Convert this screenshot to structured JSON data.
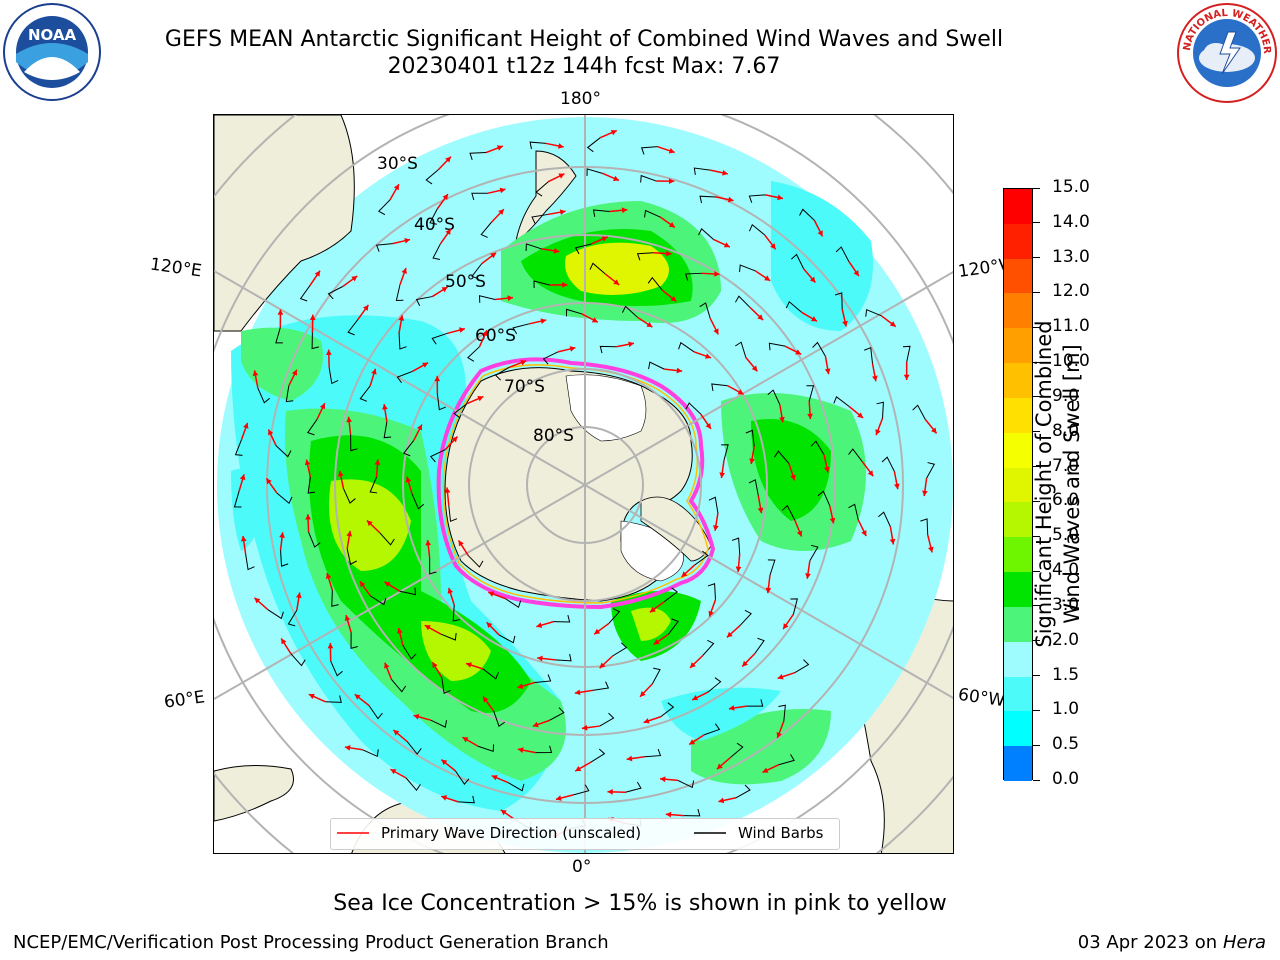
{
  "title": {
    "line1": "GEFS MEAN Antarctic Significant Height of Combined Wind Waves and Swell",
    "line2": "20230401 t12z 144h fcst   Max: 7.67"
  },
  "map": {
    "projection": "south-polar-stereographic",
    "lon_labels": {
      "top": "180°",
      "bottom": "0°",
      "upper_left": "120°E",
      "upper_right": "120°W",
      "lower_left": "60°E",
      "lower_right": "60°W"
    },
    "lat_labels": [
      "30°S",
      "40°S",
      "50°S",
      "60°S",
      "70°S",
      "80°S"
    ],
    "colors": {
      "land": "#eeeeda",
      "ice": "#ffffff",
      "wave_low": "#9efcff",
      "wave_mid": "#4dfafa",
      "wave_3_4": "#4cf57a",
      "wave_4_5": "#00e400",
      "wave_5_6": "#6ef500",
      "wave_6_7": "#b4f700",
      "wave_7_8": "#e0f500",
      "arrow": "#ff0000",
      "barb": "#000000"
    }
  },
  "legend": {
    "primary": "Primary Wave Direction (unscaled)",
    "barbs": "Wind Barbs"
  },
  "colorbar": {
    "label_line1": "Significant Height of Combined",
    "label_line2": "Wind Waves and Swell [m]",
    "ticks": [
      "15.0",
      "14.0",
      "13.0",
      "12.0",
      "11.0",
      "10.0",
      "9.0",
      "8.0",
      "7.0",
      "6.0",
      "5.0",
      "4.0",
      "3.0",
      "2.0",
      "1.5",
      "1.0",
      "0.5",
      "0.0"
    ],
    "colors_top_to_bottom": [
      "#ff0000",
      "#ff2000",
      "#ff5000",
      "#ff8000",
      "#ffa000",
      "#ffc000",
      "#ffe000",
      "#f5ff00",
      "#e0f500",
      "#b4f700",
      "#6ef500",
      "#00e400",
      "#4cf57a",
      "#9efcff",
      "#4dfafa",
      "#00ffff",
      "#0080ff",
      "#0000ff"
    ]
  },
  "note": "Sea Ice Concentration > 15% is shown in pink to yellow",
  "footer": {
    "left": "NCEP/EMC/Verification Post Processing Product Generation Branch",
    "right_date": "03 Apr 2023 on ",
    "right_machine": "Hera"
  },
  "logos": {
    "noaa_text": "NOAA",
    "nws_text": "NATIONAL WEATHER SERVICE"
  }
}
